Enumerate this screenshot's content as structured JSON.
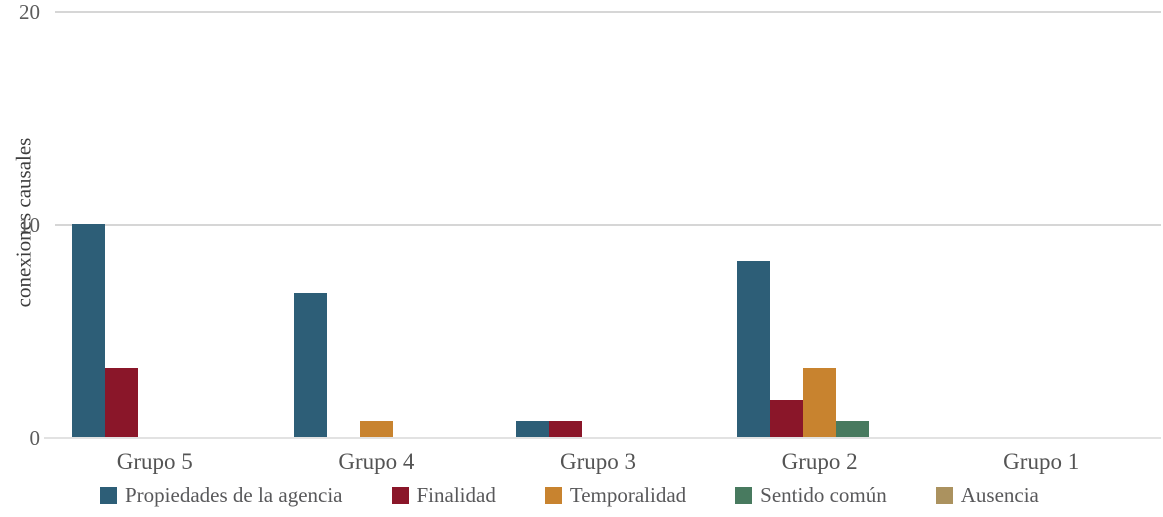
{
  "chart_data": {
    "type": "bar",
    "title": "",
    "xlabel": "",
    "ylabel": "conexiones causales",
    "ylim": [
      0,
      20
    ],
    "yticks": [
      0,
      10,
      20
    ],
    "grid": "horizontal-gridlines-at-yticks",
    "legend_position": "bottom",
    "categories": [
      "Grupo 5",
      "Grupo 4",
      "Grupo 3",
      "Grupo 2",
      "Grupo 1"
    ],
    "series": [
      {
        "name": "Propiedades de la agencia",
        "color": "#2d5e77",
        "values": [
          10,
          6.75,
          0.75,
          8.25,
          0
        ]
      },
      {
        "name": "Finalidad",
        "color": "#8a1629",
        "values": [
          3.25,
          0,
          0.75,
          1.75,
          0
        ]
      },
      {
        "name": "Temporalidad",
        "color": "#c8832f",
        "values": [
          0,
          0.75,
          0,
          3.25,
          0
        ]
      },
      {
        "name": "Sentido común",
        "color": "#487a5f",
        "values": [
          0,
          0,
          0,
          0.75,
          0
        ]
      },
      {
        "name": "Ausencia",
        "color": "#ab925f",
        "values": [
          0,
          0,
          0,
          0,
          0
        ]
      }
    ],
    "colors": {
      "gridline": "#d6d6d6",
      "axis_tick_text": "#5c5c5c",
      "category_text": "#545454",
      "legend_text": "#58585a",
      "background": "#ffffff"
    }
  }
}
